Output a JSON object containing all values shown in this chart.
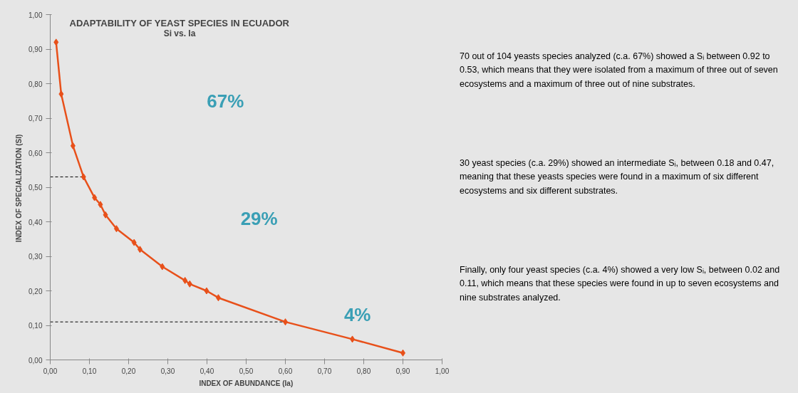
{
  "chart_data": {
    "type": "line",
    "title": "ADAPTABILITY OF YEAST SPECIES IN ECUADOR",
    "subtitle": "Si vs. Ia",
    "xlabel": "INDEX OF ABUNDANCE (Ia)",
    "ylabel": "INDEX OF SPECIALIZATION  (SI)",
    "x": [
      0.015,
      0.028,
      0.058,
      0.085,
      0.113,
      0.128,
      0.141,
      0.169,
      0.214,
      0.229,
      0.286,
      0.344,
      0.356,
      0.399,
      0.429,
      0.6,
      0.771,
      0.9
    ],
    "series": [
      {
        "color": "#e8501a",
        "values": [
          0.92,
          0.77,
          0.62,
          0.53,
          0.47,
          0.45,
          0.42,
          0.38,
          0.34,
          0.32,
          0.27,
          0.23,
          0.22,
          0.2,
          0.18,
          0.11,
          0.06,
          0.02
        ]
      }
    ],
    "xlim": [
      0,
      1.0
    ],
    "ylim": [
      0,
      1.0
    ],
    "xticks": [
      {
        "value": 0,
        "label": "0,00"
      },
      {
        "value": 0.1,
        "label": "0,10"
      },
      {
        "value": 0.2,
        "label": "0,20"
      },
      {
        "value": 0.3,
        "label": "0,30"
      },
      {
        "value": 0.4,
        "label": "0,40"
      },
      {
        "value": 0.5,
        "label": "0,50"
      },
      {
        "value": 0.6,
        "label": "0,60"
      },
      {
        "value": 0.7,
        "label": "0,70"
      },
      {
        "value": 0.8,
        "label": "0,80"
      },
      {
        "value": 0.9,
        "label": "0,90"
      },
      {
        "value": 1.0,
        "label": "1,00"
      }
    ],
    "yticks": [
      {
        "value": 0,
        "label": "0,00"
      },
      {
        "value": 0.1,
        "label": "0,10"
      },
      {
        "value": 0.2,
        "label": "0,20"
      },
      {
        "value": 0.3,
        "label": "0,30"
      },
      {
        "value": 0.4,
        "label": "0,40"
      },
      {
        "value": 0.5,
        "label": "0,50"
      },
      {
        "value": 0.6,
        "label": "0,60"
      },
      {
        "value": 0.7,
        "label": "0,70"
      },
      {
        "value": 0.8,
        "label": "0,80"
      },
      {
        "value": 0.9,
        "label": "0,90"
      },
      {
        "value": 1.0,
        "label": "1,00"
      }
    ],
    "ref_lines": [
      {
        "axis": "y",
        "value": 0.53,
        "line_style": "dashed",
        "color": "#000000"
      },
      {
        "axis": "y",
        "value": 0.11,
        "line_style": "dashed",
        "color": "#000000"
      }
    ],
    "annotations": [
      "67%",
      "29%",
      "4%",
      "70 out of 104 yeasts species analyzed (c.a. 67%) showed a Sᵢ between 0.92 to 0.53, which means that they were isolated from a maximum of three out of seven ecosystems and a maximum of three out of nine substrates.",
      " 30 yeast species (c.a. 29%) showed an intermediate Sᵢ, between  0.18 and 0.47, meaning that these yeasts species were found in a maximum of six different ecosystems and six different substrates.",
      "Finally, only four yeast species (c.a. 4%) showed a very low Sᵢ, between 0.02 and 0.11, which means that these species were found in up to seven ecosystems and nine substrates analyzed."
    ],
    "marker": "diamond"
  }
}
